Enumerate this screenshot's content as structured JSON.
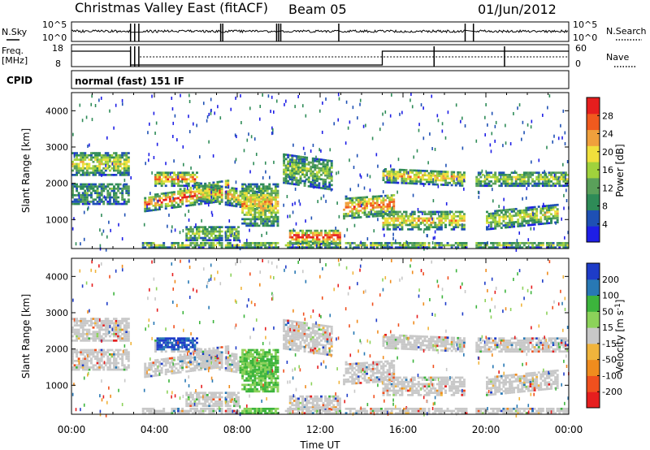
{
  "header": {
    "title": "Christmas Valley East (fitACF)",
    "beam": "Beam 05",
    "date": "01/Jun/2012"
  },
  "status_rows": {
    "nsky_label": "N.Sky",
    "nsearch_label": "N.Search",
    "nsky_ticks": [
      "10^5",
      "10^0"
    ],
    "nsearch_ticks": [
      "10^5",
      "10^0"
    ],
    "freq_label_1": "Freq.",
    "freq_label_2": "[MHz]",
    "freq_ticks": [
      "18",
      "8"
    ],
    "nave_label": "Nave",
    "nave_ticks": [
      "60",
      "0"
    ],
    "cpid_label": "CPID",
    "cpid_text": "normal (fast) 151 IF"
  },
  "colors": {
    "power": [
      "#1e1ee6",
      "#1e50b4",
      "#2e8b57",
      "#5aa05a",
      "#a0d23c",
      "#f0e03c",
      "#f0a03c",
      "#f05a1e",
      "#e61e1e"
    ],
    "velocity": [
      "#1e3cc8",
      "#2878b4",
      "#3cb43c",
      "#8cd25a",
      "#c8c8c8",
      "#f0b43c",
      "#f08c1e",
      "#f0501e",
      "#e61e1e"
    ]
  },
  "chart_data": [
    {
      "type": "heatmap",
      "name": "power",
      "ylabel": "Slant Range [km]",
      "xlabel": "Time UT",
      "x_ticks": [
        "00:00",
        "04:00",
        "08:00",
        "12:00",
        "16:00",
        "20:00",
        "00:00"
      ],
      "y_ticks": [
        "1000",
        "2000",
        "3000",
        "4000"
      ],
      "ylim": [
        200,
        4500
      ],
      "xlim_hours": [
        0,
        24
      ],
      "colorbar_label": "Power [dB]",
      "colorbar_ticks": [
        "4",
        "8",
        "12",
        "16",
        "20",
        "24",
        "28"
      ],
      "clim": [
        0,
        30
      ]
    },
    {
      "type": "heatmap",
      "name": "velocity",
      "ylabel": "Slant Range [km]",
      "xlabel": "Time UT",
      "x_ticks": [
        "00:00",
        "04:00",
        "08:00",
        "12:00",
        "16:00",
        "20:00",
        "00:00"
      ],
      "y_ticks": [
        "1000",
        "2000",
        "3000",
        "4000"
      ],
      "ylim": [
        200,
        4500
      ],
      "xlim_hours": [
        0,
        24
      ],
      "colorbar_label": "Velocity [m s^-1]",
      "colorbar_ticks": [
        "200",
        "100",
        "50",
        "15",
        "-15",
        "-50",
        "-100",
        "-200"
      ]
    }
  ]
}
